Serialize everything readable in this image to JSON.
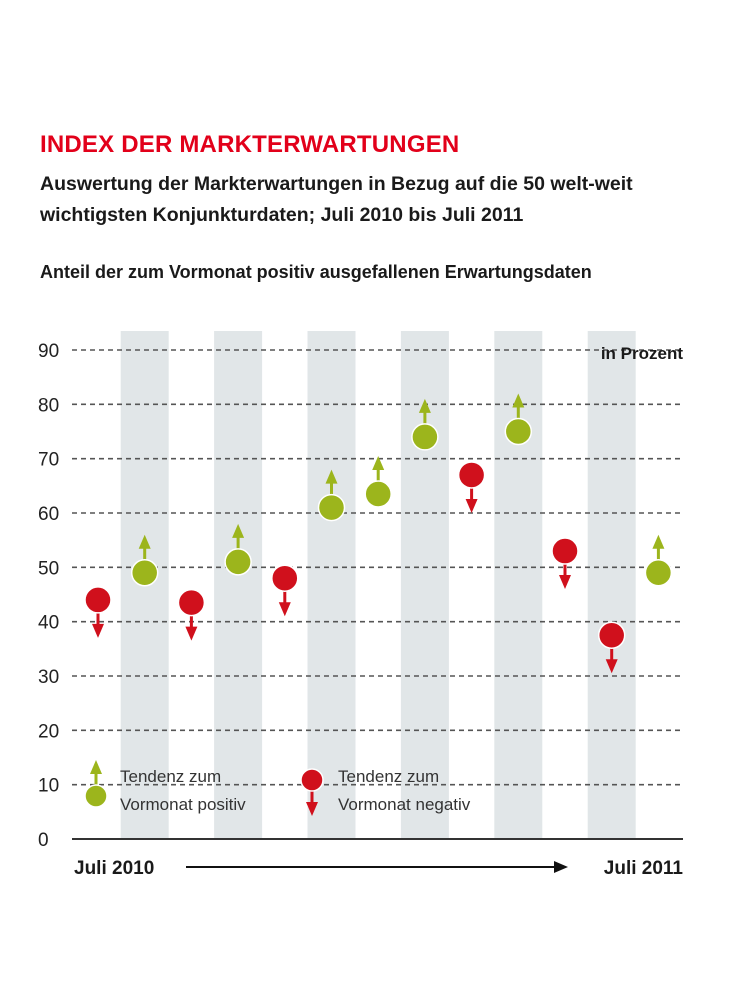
{
  "colors": {
    "title": "#e2001a",
    "positive": "#9cb51c",
    "negative": "#d0101c",
    "band": "#e1e6e8",
    "grid": "#555555",
    "text": "#1a1a1a"
  },
  "chart_data": {
    "type": "scatter",
    "title": "INDEX DER MARKTERWARTUNGEN",
    "subtitle": "Auswertung der Markterwartungen in Bezug auf die 50 welt-weit wichtigsten Konjunkturdaten; Juli 2010 bis Juli 2011",
    "caption": "Anteil der zum Vormonat positiv ausgefallenen Erwartungsdaten",
    "unit_label": "in Prozent",
    "ylim": [
      0,
      90
    ],
    "yticks": [
      0,
      10,
      20,
      30,
      40,
      50,
      60,
      70,
      80,
      90
    ],
    "grid": true,
    "x_start_label": "Juli 2010",
    "x_end_label": "Juli 2011",
    "points": [
      {
        "value": 44,
        "trend": "negative"
      },
      {
        "value": 49,
        "trend": "positive"
      },
      {
        "value": 43.5,
        "trend": "negative"
      },
      {
        "value": 51,
        "trend": "positive"
      },
      {
        "value": 48,
        "trend": "negative"
      },
      {
        "value": 61,
        "trend": "positive"
      },
      {
        "value": 63.5,
        "trend": "positive"
      },
      {
        "value": 74,
        "trend": "positive"
      },
      {
        "value": 67,
        "trend": "negative"
      },
      {
        "value": 75,
        "trend": "positive"
      },
      {
        "value": 53,
        "trend": "negative"
      },
      {
        "value": 37.5,
        "trend": "negative"
      },
      {
        "value": 49,
        "trend": "positive"
      }
    ],
    "legend": {
      "positive_line1": "Tendenz zum",
      "positive_line2": "Vormonat positiv",
      "negative_line1": "Tendenz zum",
      "negative_line2": "Vormonat negativ"
    }
  }
}
